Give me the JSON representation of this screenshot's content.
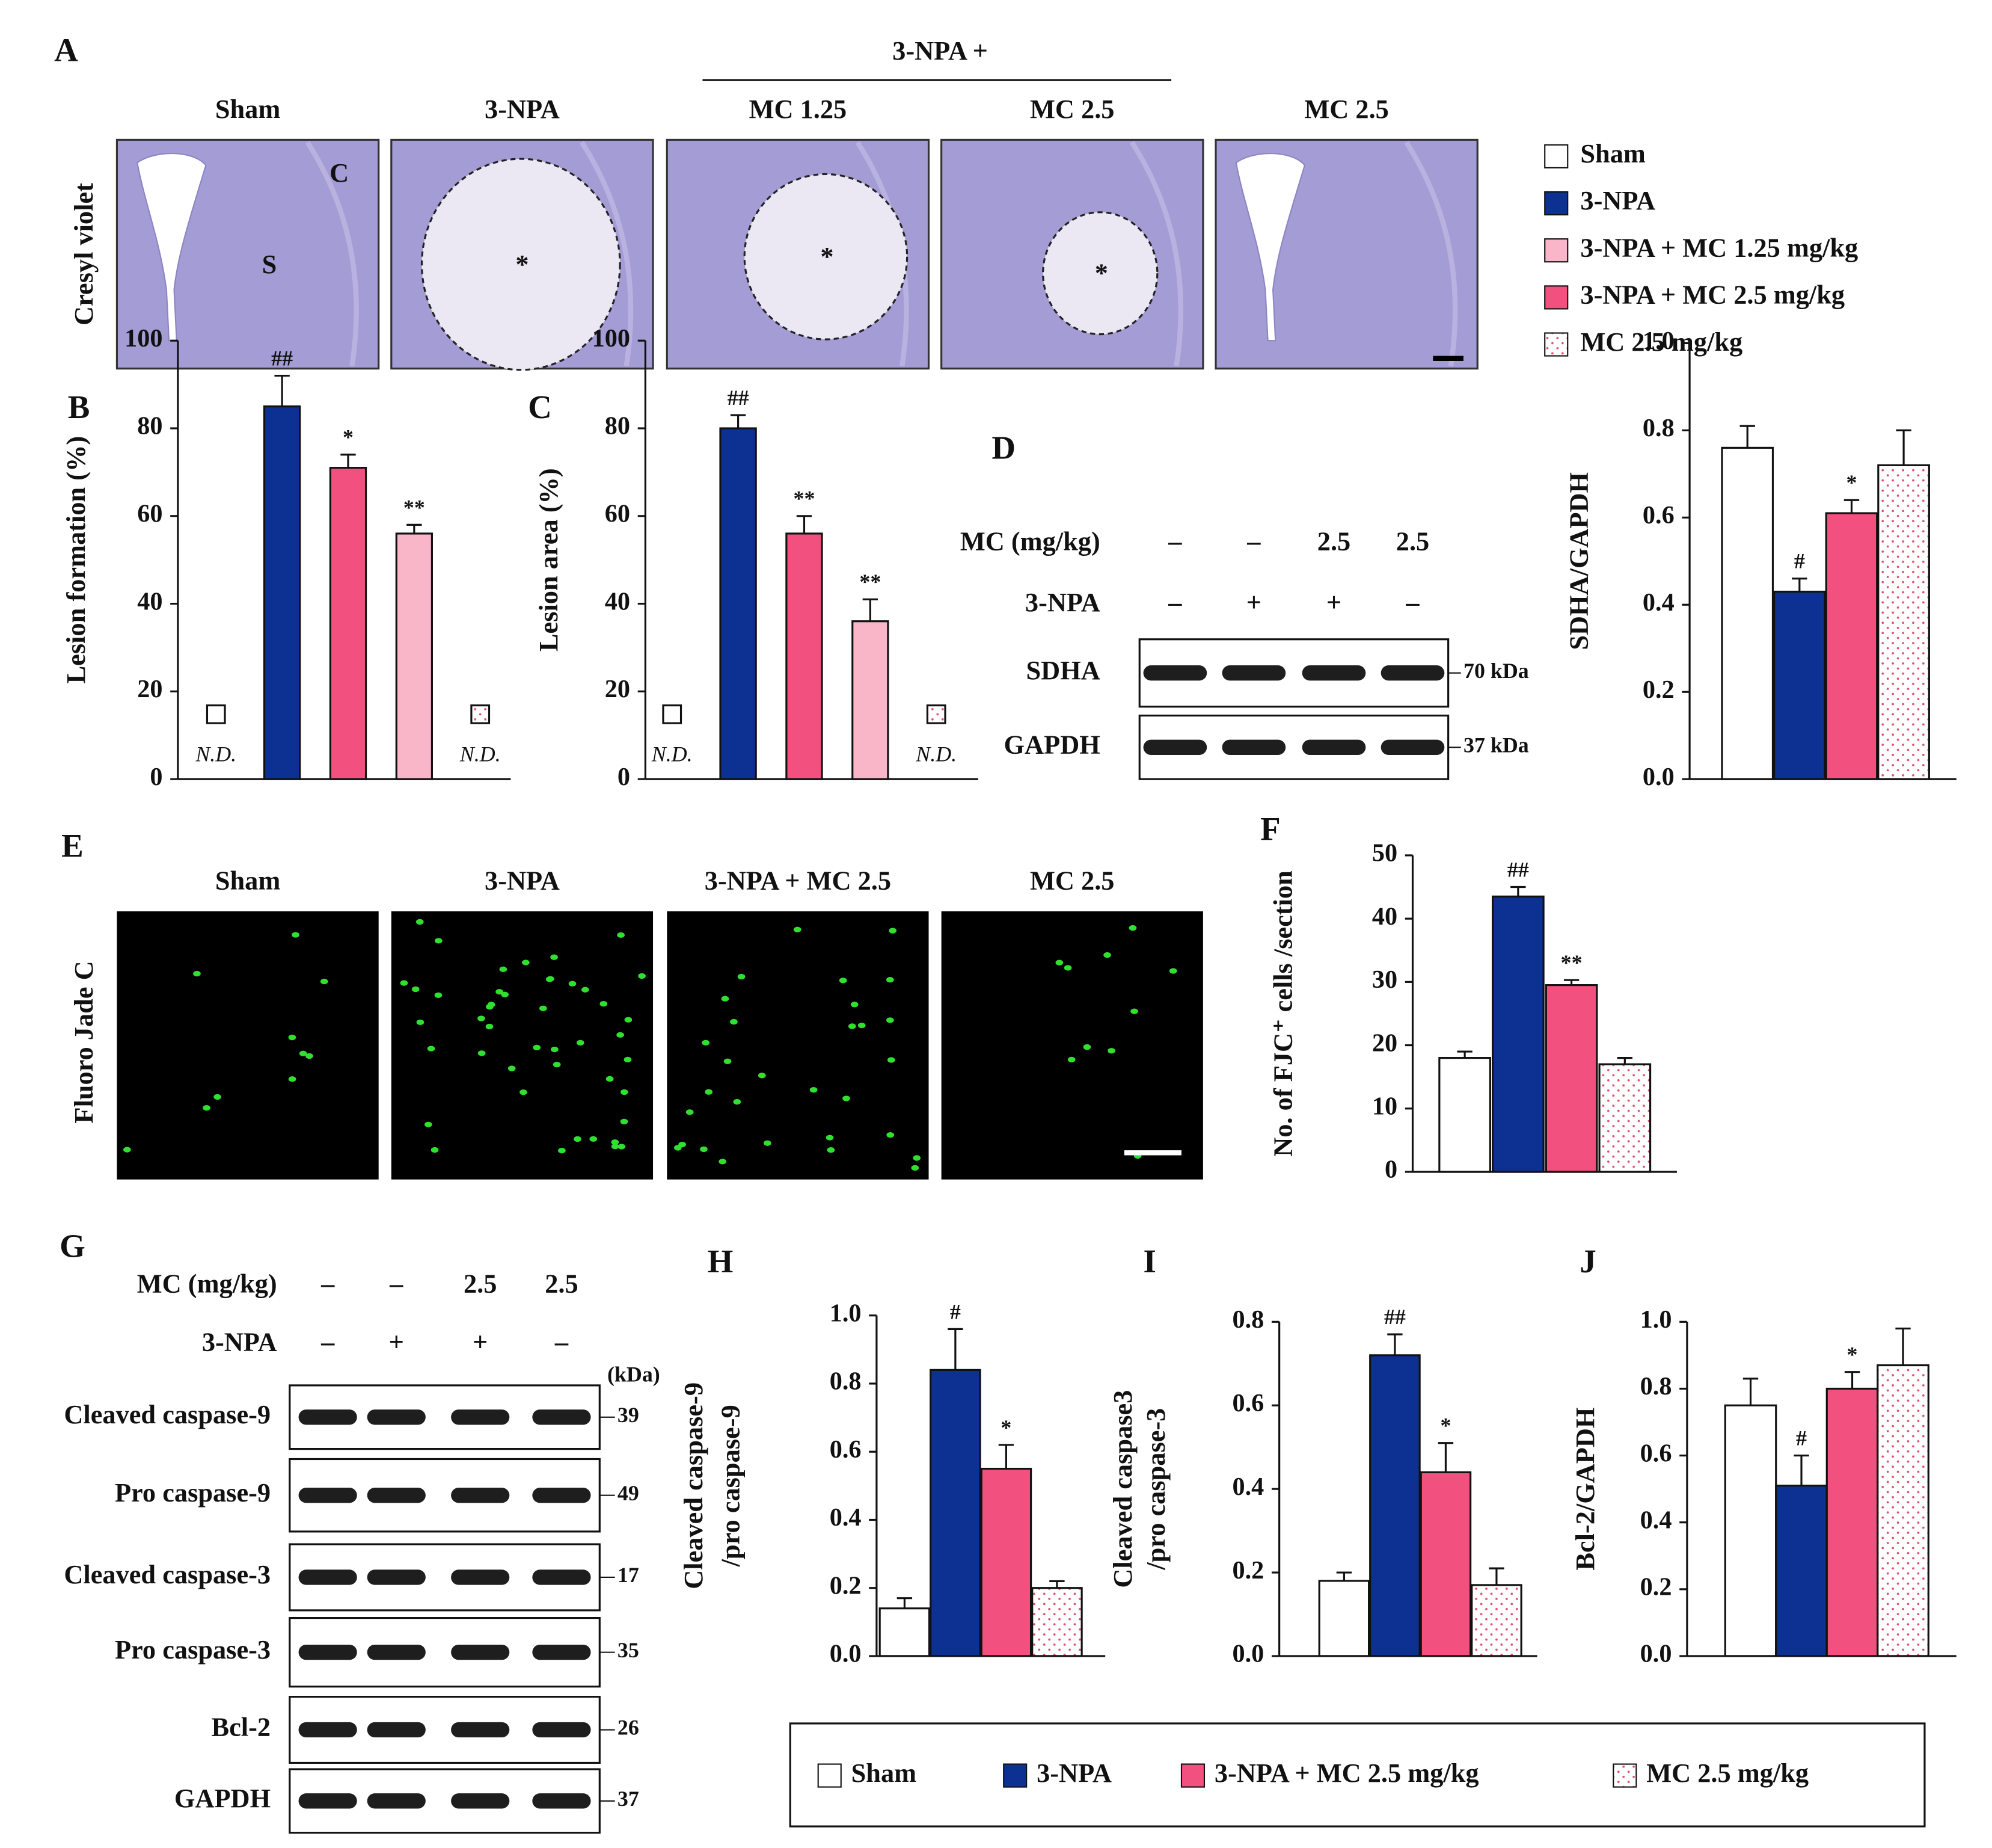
{
  "figure": {
    "panel_A": {
      "letter": "A",
      "group_label": "3-NPA +",
      "columns": [
        "Sham",
        "3-NPA",
        "MC 1.25",
        "MC 2.5",
        "MC 2.5"
      ],
      "stain": "Cresyl violet",
      "region_labels": [
        "C",
        "S"
      ],
      "lesion_marks": [
        "*",
        "*",
        "*"
      ],
      "legend": [
        {
          "name": "Sham",
          "color": "#ffffff",
          "dotted": false
        },
        {
          "name": "3-NPA",
          "color": "#0d3192",
          "dotted": false
        },
        {
          "name": "3-NPA + MC 1.25 mg/kg",
          "color": "#f9b6c8",
          "dotted": false
        },
        {
          "name": "3-NPA + MC 2.5 mg/kg",
          "color": "#f2507f",
          "dotted": false
        },
        {
          "name": "MC 2.5 mg/kg",
          "color": "#ffffff",
          "dotted": true
        }
      ]
    },
    "blot_D": {
      "treatments": [
        {
          "label": "MC (mg/kg)",
          "lanes": [
            "–",
            "–",
            "2.5",
            "2.5"
          ]
        },
        {
          "label": "3-NPA",
          "lanes": [
            "–",
            "+",
            "+",
            "–"
          ]
        }
      ],
      "bands": [
        {
          "label": "SDHA",
          "size": "70 kDa"
        },
        {
          "label": "GAPDH",
          "size": "37 kDa"
        }
      ]
    },
    "panel_E": {
      "letter": "E",
      "columns": [
        "Sham",
        "3-NPA",
        "3-NPA + MC 2.5",
        "MC 2.5"
      ],
      "stain": "Fluoro Jade C"
    },
    "blot_G": {
      "letter": "G",
      "unit": "(kDa)",
      "treatments": [
        {
          "label": "MC (mg/kg)",
          "lanes": [
            "–",
            "–",
            "2.5",
            "2.5"
          ]
        },
        {
          "label": "3-NPA",
          "lanes": [
            "–",
            "+",
            "+",
            "–"
          ]
        }
      ],
      "bands": [
        {
          "label": "Cleaved caspase-9",
          "size": 39
        },
        {
          "label": "Pro caspase-9",
          "size": 49
        },
        {
          "label": "Cleaved caspase-3",
          "size": 17
        },
        {
          "label": "Pro caspase-3",
          "size": 35
        },
        {
          "label": "Bcl-2",
          "size": 26
        },
        {
          "label": "GAPDH",
          "size": 37
        }
      ]
    },
    "legend_bottom": [
      {
        "name": "Sham",
        "color": "#ffffff",
        "dotted": false
      },
      {
        "name": "3-NPA",
        "color": "#0d3192",
        "dotted": false
      },
      {
        "name": "3-NPA + MC 2.5 mg/kg",
        "color": "#f2507f",
        "dotted": false
      },
      {
        "name": "MC 2.5 mg/kg",
        "color": "#ffffff",
        "dotted": true
      }
    ]
  },
  "chart_data": [
    {
      "type": "bar",
      "panel": "B",
      "ylabel": "Lesion formation (%)",
      "values": [
        null,
        85,
        71,
        56,
        null
      ],
      "errors": [
        null,
        7,
        3,
        2,
        null
      ],
      "value_labels": [
        "N.D.",
        null,
        null,
        null,
        "N.D."
      ],
      "annotations": [
        null,
        "##",
        "*",
        "**",
        null
      ],
      "colors": [
        "#ffffff",
        "#0d3192",
        "#f2507f",
        "#f9b6c8",
        "#ffffff"
      ],
      "dotted": [
        false,
        false,
        false,
        false,
        true
      ],
      "ylim": [
        0,
        100
      ],
      "yticks": [
        0,
        20,
        40,
        60,
        80,
        100
      ]
    },
    {
      "type": "bar",
      "panel": "C",
      "ylabel": "Lesion area (%)",
      "values": [
        null,
        80,
        56,
        36,
        null
      ],
      "errors": [
        null,
        3,
        4,
        5,
        null
      ],
      "value_labels": [
        "N.D.",
        null,
        null,
        null,
        "N.D."
      ],
      "annotations": [
        null,
        "##",
        "**",
        "**",
        null
      ],
      "colors": [
        "#ffffff",
        "#0d3192",
        "#f2507f",
        "#f9b6c8",
        "#ffffff"
      ],
      "dotted": [
        false,
        false,
        false,
        false,
        true
      ],
      "ylim": [
        0,
        100
      ],
      "yticks": [
        0,
        20,
        40,
        60,
        80,
        100
      ]
    },
    {
      "type": "bar",
      "panel": "D",
      "ylabel": "SDHA/GAPDH",
      "values": [
        0.76,
        0.43,
        0.61,
        0.72
      ],
      "errors": [
        0.05,
        0.03,
        0.03,
        0.08
      ],
      "annotations": [
        null,
        "#",
        "*",
        null
      ],
      "colors": [
        "#ffffff",
        "#0d3192",
        "#f2507f",
        "#ffffff"
      ],
      "dotted": [
        false,
        false,
        false,
        true
      ],
      "ylim": [
        0,
        1
      ],
      "yticks": [
        {
          "value": 0,
          "label": "0.0"
        },
        0.2,
        0.4,
        0.6,
        0.8,
        {
          "value": 1,
          "label": "1.0"
        }
      ]
    },
    {
      "type": "bar",
      "panel": "F",
      "ylabel": "No. of FJC⁺ cells /section",
      "values": [
        18,
        43.5,
        29.5,
        17
      ],
      "errors": [
        1,
        1.5,
        0.8,
        1
      ],
      "annotations": [
        null,
        "##",
        "**",
        null
      ],
      "colors": [
        "#ffffff",
        "#0d3192",
        "#f2507f",
        "#ffffff"
      ],
      "dotted": [
        false,
        false,
        false,
        true
      ],
      "ylim": [
        0,
        50
      ],
      "yticks": [
        0,
        10,
        20,
        30,
        40,
        50
      ]
    },
    {
      "type": "bar",
      "panel": "H",
      "ylabel": [
        "Cleaved caspase-9",
        "/pro caspase-9"
      ],
      "values": [
        0.14,
        0.84,
        0.55,
        0.2
      ],
      "errors": [
        0.03,
        0.12,
        0.07,
        0.02
      ],
      "annotations": [
        null,
        "#",
        "*",
        null
      ],
      "colors": [
        "#ffffff",
        "#0d3192",
        "#f2507f",
        "#ffffff"
      ],
      "dotted": [
        false,
        false,
        false,
        true
      ],
      "ylim": [
        0,
        1
      ],
      "yticks": [
        {
          "value": 0,
          "label": "0.0"
        },
        0.2,
        0.4,
        0.6,
        0.8,
        {
          "value": 1,
          "label": "1.0"
        }
      ]
    },
    {
      "type": "bar",
      "panel": "I",
      "ylabel": [
        "Cleaved caspase3",
        "/pro caspase-3"
      ],
      "values": [
        0.18,
        0.72,
        0.44,
        0.17
      ],
      "errors": [
        0.02,
        0.05,
        0.07,
        0.04
      ],
      "annotations": [
        null,
        "##",
        "*",
        null
      ],
      "colors": [
        "#ffffff",
        "#0d3192",
        "#f2507f",
        "#ffffff"
      ],
      "dotted": [
        false,
        false,
        false,
        true
      ],
      "ylim": [
        0,
        0.8
      ],
      "yticks": [
        {
          "value": 0,
          "label": "0.0"
        },
        0.2,
        0.4,
        0.6,
        0.8
      ]
    },
    {
      "type": "bar",
      "panel": "J",
      "ylabel": "Bcl-2/GAPDH",
      "values": [
        0.75,
        0.51,
        0.8,
        0.87
      ],
      "errors": [
        0.08,
        0.09,
        0.05,
        0.11
      ],
      "annotations": [
        null,
        "#",
        "*",
        null
      ],
      "colors": [
        "#ffffff",
        "#0d3192",
        "#f2507f",
        "#ffffff"
      ],
      "dotted": [
        false,
        false,
        false,
        true
      ],
      "ylim": [
        0,
        1
      ],
      "yticks": [
        {
          "value": 0,
          "label": "0.0"
        },
        0.2,
        0.4,
        0.6,
        0.8,
        {
          "value": 1,
          "label": "1.0"
        }
      ]
    }
  ]
}
